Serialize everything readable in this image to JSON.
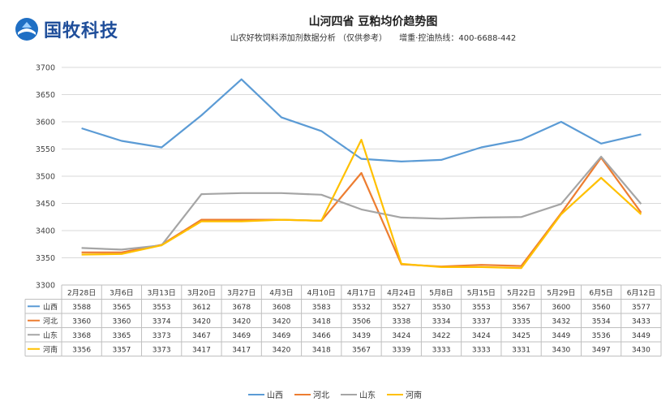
{
  "logo": {
    "text": "国牧科技"
  },
  "header": {
    "title": "山河四省 豆粕均价趋势图",
    "subtitle_left": "山农好牧饲料添加剂数据分析 （仅供参考）",
    "subtitle_right": "增重·控油热线：400-6688-442"
  },
  "colors": {
    "山西": "#5b9bd5",
    "河北": "#ed7d31",
    "山东": "#a5a5a5",
    "河南": "#ffc000"
  },
  "chart_data": {
    "type": "line",
    "title": "山河四省 豆粕均价趋势图",
    "categories": [
      "2月28日",
      "3月6日",
      "3月13日",
      "3月20日",
      "3月27日",
      "4月3日",
      "4月10日",
      "4月17日",
      "4月24日",
      "5月8日",
      "5月15日",
      "5月22日",
      "5月29日",
      "6月5日",
      "6月12日"
    ],
    "series": [
      {
        "name": "山西",
        "values": [
          3588,
          3565,
          3553,
          3612,
          3678,
          3608,
          3583,
          3532,
          3527,
          3530,
          3553,
          3567,
          3600,
          3560,
          3577
        ]
      },
      {
        "name": "河北",
        "values": [
          3360,
          3360,
          3374,
          3420,
          3420,
          3420,
          3418,
          3506,
          3338,
          3334,
          3337,
          3335,
          3432,
          3534,
          3433
        ]
      },
      {
        "name": "山东",
        "values": [
          3368,
          3365,
          3373,
          3467,
          3469,
          3469,
          3466,
          3439,
          3424,
          3422,
          3424,
          3425,
          3449,
          3536,
          3449
        ]
      },
      {
        "name": "河南",
        "values": [
          3356,
          3357,
          3373,
          3417,
          3417,
          3420,
          3418,
          3567,
          3339,
          3333,
          3333,
          3331,
          3430,
          3497,
          3430
        ]
      }
    ],
    "yticks": [
      3300,
      3350,
      3400,
      3450,
      3500,
      3550,
      3600,
      3650,
      3700
    ],
    "ylim": [
      3300,
      3700
    ],
    "grid": true,
    "legend_position": "bottom",
    "data_table": true
  }
}
